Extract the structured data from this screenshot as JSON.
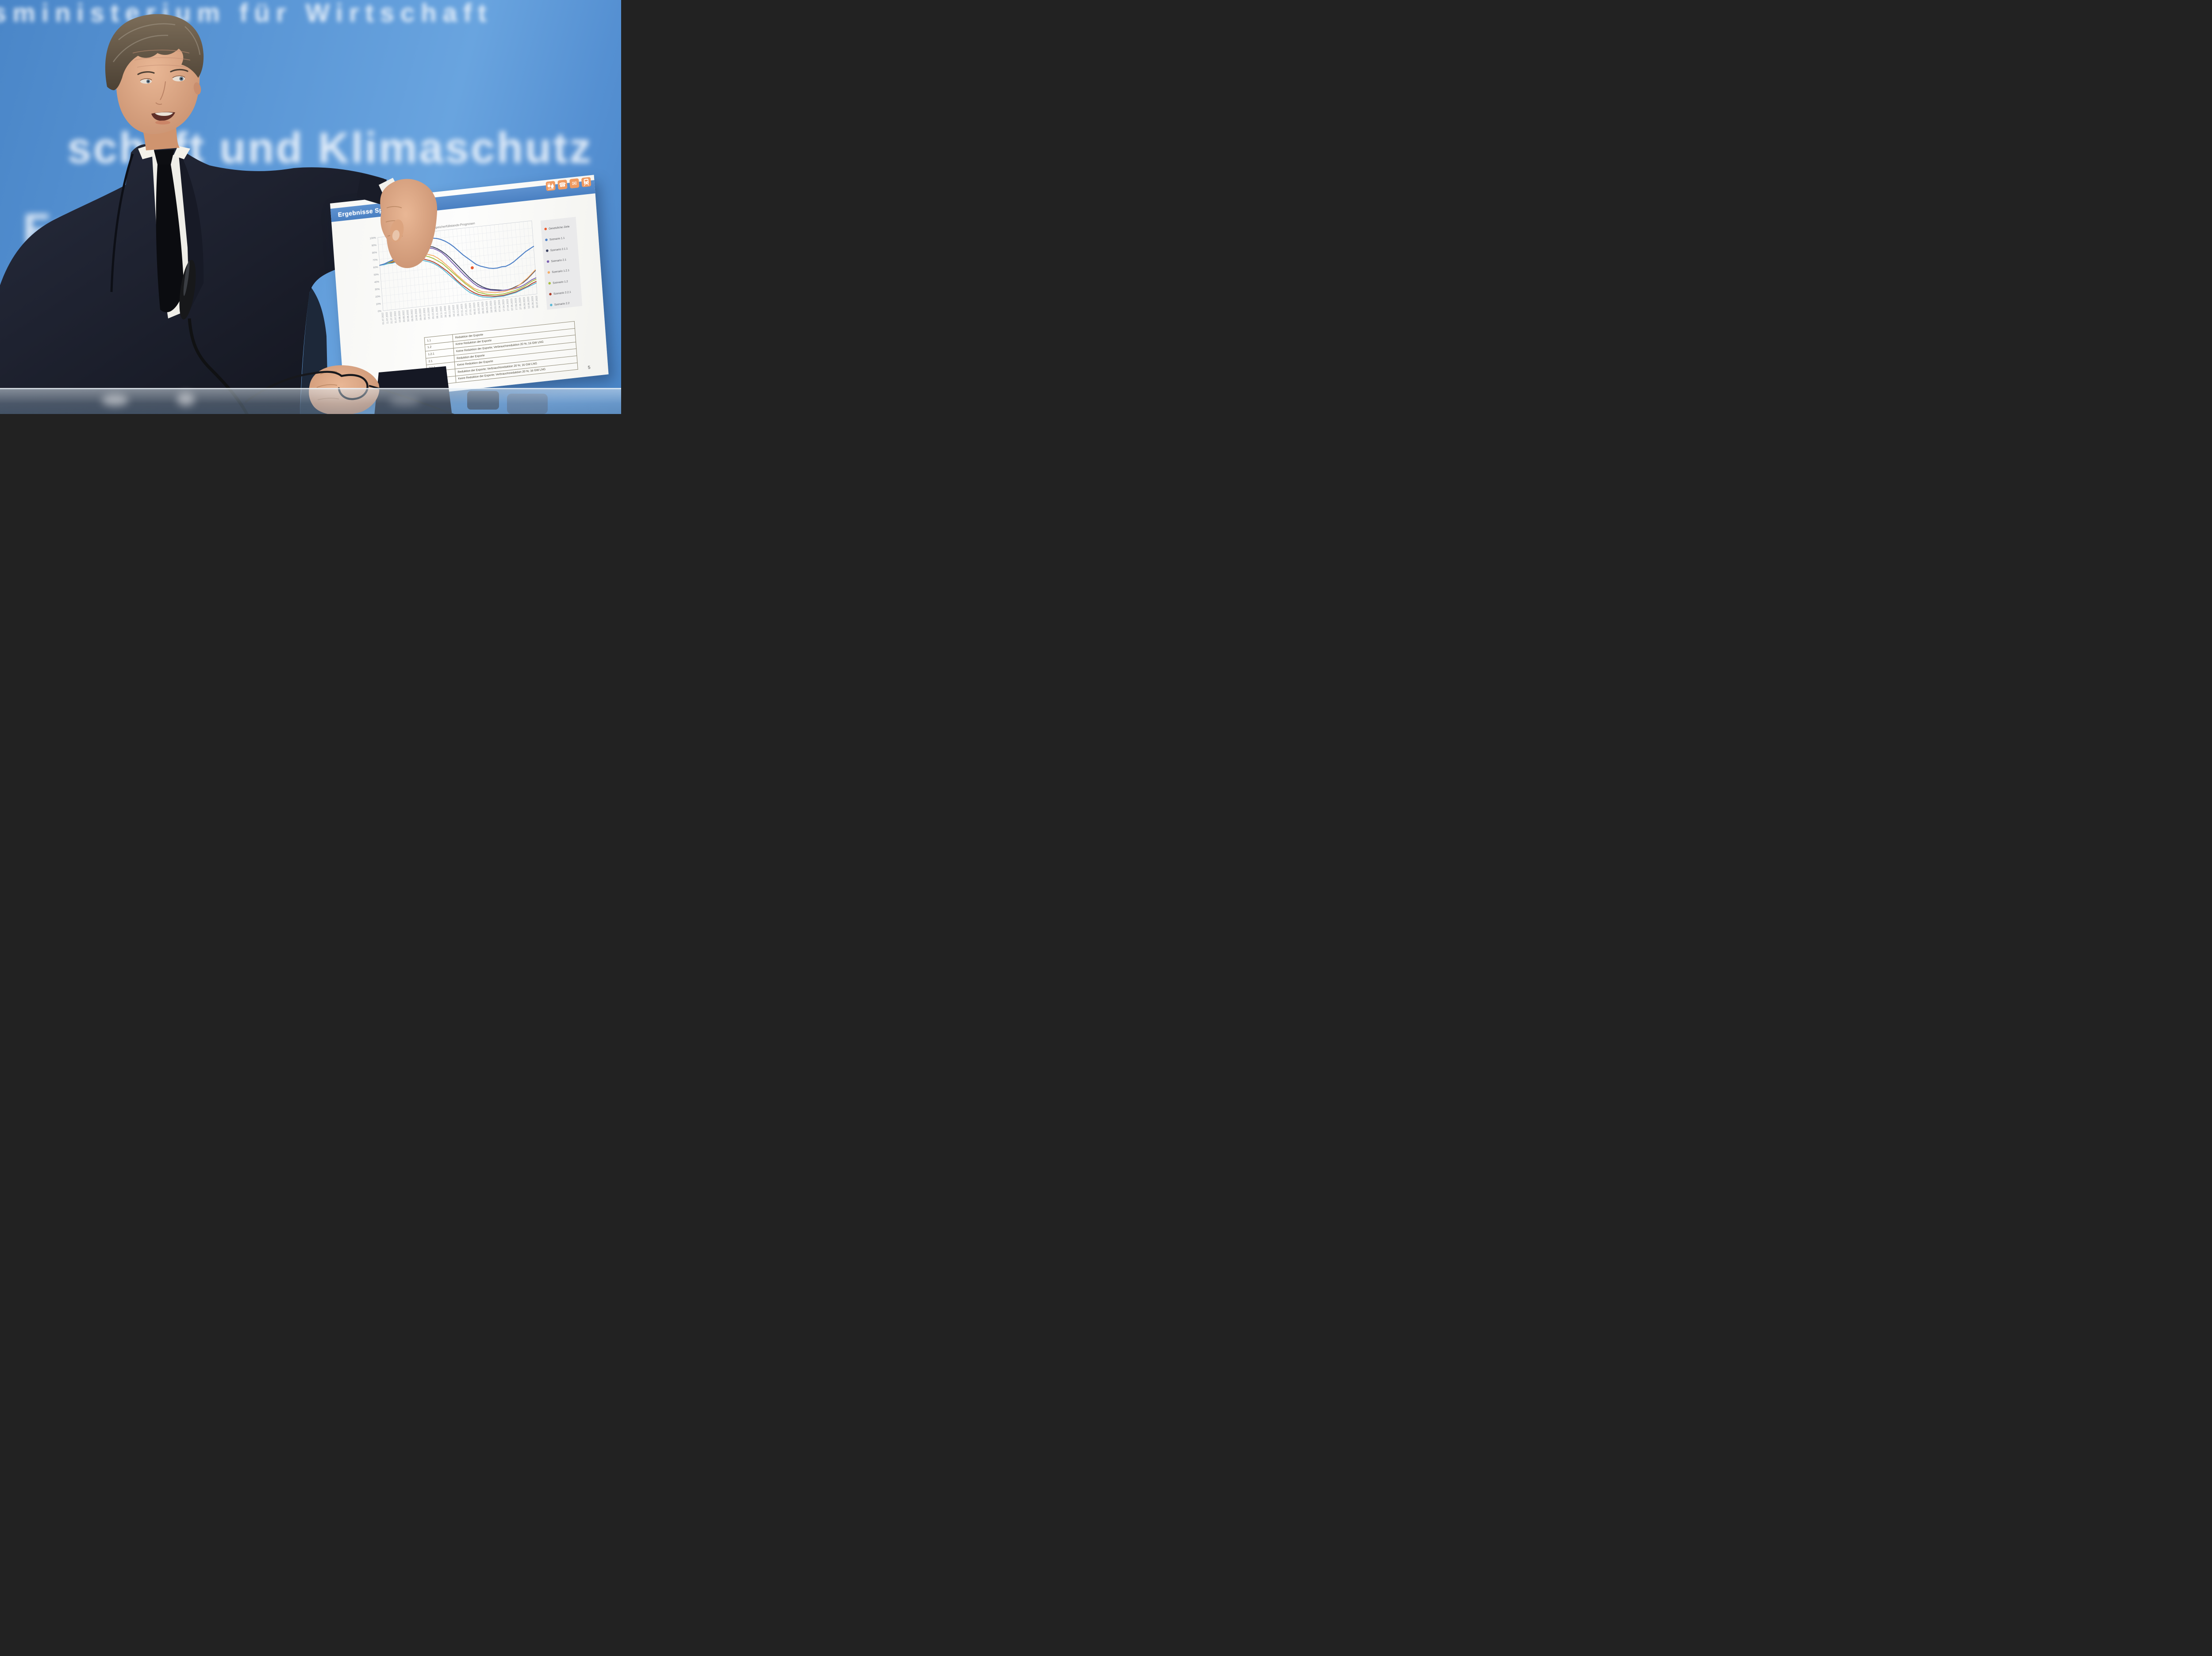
{
  "backdrop": {
    "wall_color": "#5b97d6",
    "rows": [
      {
        "text": "sministerium für Wirtschaft"
      },
      {
        "text": "schaft und Klimaschutz"
      },
      {
        "text": "Fe"
      },
      {
        "text": "cti"
      }
    ]
  },
  "slide": {
    "header": {
      "title": "Ergebnisse Speicherfüllstände",
      "bar_color": "#4a80c2",
      "icon_bg": "#f09a60",
      "icons": [
        {
          "name": "energy-plug-flame-icon",
          "glyph": ""
        },
        {
          "name": "phone-icon",
          "glyph": "☎"
        },
        {
          "name": "mail-icon",
          "glyph": "✉"
        },
        {
          "name": "train-icon",
          "glyph": ""
        }
      ]
    },
    "page_number": "5",
    "table": {
      "rows": [
        {
          "id": "1.1",
          "description": "Reduktion der Exporte"
        },
        {
          "id": "1.2",
          "description": "Keine Reduktion der Exporte"
        },
        {
          "id": "1.2.1",
          "description": "Keine Reduktion der Exporte; Verbrauchsreduktion 20 %; 16 GW LNG"
        },
        {
          "id": "2.1",
          "description": "Reduktion der Exporte"
        },
        {
          "id": "2.1.1",
          "description": "Keine Reduktion der Exporte"
        },
        {
          "id": "2.2",
          "description": "Reduktion der Exporte; Verbrauchsreduktion 20 %; 16 GW LNG"
        },
        {
          "id": "2.2.1",
          "description": "Keine Reduktion der Exporte; Verbrauchsreduktion 20 %; 16 GW LNG"
        }
      ]
    }
  },
  "chart_data": {
    "type": "line",
    "title": "Speicherfüllstands-Prognosen",
    "xlabel": "",
    "ylabel": "",
    "ylim": [
      0,
      100
    ],
    "y_ticks": [
      "0%",
      "10%",
      "20%",
      "30%",
      "40%",
      "50%",
      "60%",
      "70%",
      "80%",
      "90%",
      "100%"
    ],
    "grid": true,
    "legend_position": "right",
    "categories": [
      "01.07.2022",
      "11.07.2022",
      "21.07.2022",
      "31.07.2022",
      "10.08.2022",
      "20.08.2022",
      "30.08.2022",
      "09.09.2022",
      "19.09.2022",
      "29.09.2022",
      "09.10.2022",
      "19.10.2022",
      "29.10.2022",
      "08.11.2022",
      "18.11.2022",
      "28.11.2022",
      "08.12.2022",
      "18.12.2022",
      "28.12.2022",
      "07.01.2023",
      "17.01.2023",
      "27.01.2023",
      "06.02.2023",
      "16.02.2023",
      "26.02.2023",
      "08.03.2023",
      "18.03.2023",
      "28.03.2023",
      "07.04.2023",
      "17.04.2023",
      "27.04.2023",
      "07.05.2023",
      "17.05.2023",
      "27.05.2023",
      "06.06.2023",
      "16.06.2023",
      "26.06.2023",
      "06.07.2023"
    ],
    "series": [
      {
        "name": "Szenario 1.1",
        "color": "#4f81c7",
        "values": [
          62,
          63,
          65,
          67,
          70,
          74,
          78,
          81,
          85,
          84,
          88,
          91,
          90,
          91,
          90,
          88,
          85,
          81,
          76,
          70,
          64,
          59,
          54,
          49,
          46,
          44,
          42,
          41,
          41,
          42,
          42,
          44,
          47,
          51,
          55,
          59,
          62,
          65
        ]
      },
      {
        "name": "Szenario 2.1.1",
        "color": "#3a4160",
        "values": [
          62,
          63,
          64,
          66,
          68,
          70,
          72,
          74,
          76,
          78,
          79,
          80,
          80,
          79,
          76,
          72,
          67,
          61,
          54,
          47,
          40,
          33,
          27,
          22,
          18,
          15,
          13,
          12,
          11,
          10,
          10,
          11,
          13,
          15,
          18,
          22,
          27,
          32
        ]
      },
      {
        "name": "Szenario 2.1",
        "color": "#7a5fb0",
        "values": [
          62,
          63,
          64,
          66,
          68,
          69,
          71,
          73,
          74,
          76,
          77,
          78,
          78,
          77,
          74,
          70,
          64,
          57,
          50,
          43,
          36,
          30,
          24,
          19,
          16,
          14,
          12,
          11,
          10,
          10,
          10,
          10,
          11,
          12,
          14,
          17,
          20,
          22
        ]
      },
      {
        "name": "Szenario 1.2.1",
        "color": "#f5ad66",
        "values": [
          62,
          63,
          64,
          65,
          67,
          68,
          70,
          71,
          72,
          72,
          72,
          71,
          69,
          67,
          63,
          58,
          52,
          46,
          39,
          33,
          27,
          22,
          17,
          14,
          11,
          10,
          9,
          8,
          8,
          8,
          9,
          10,
          12,
          15,
          19,
          23,
          28,
          33
        ]
      },
      {
        "name": "Szenario 1.2",
        "color": "#a8c03f",
        "values": [
          62,
          63,
          64,
          65,
          66,
          67,
          68,
          69,
          70,
          70,
          69,
          68,
          66,
          63,
          59,
          55,
          49,
          43,
          37,
          31,
          25,
          20,
          15,
          11,
          9,
          7,
          6,
          5,
          5,
          5,
          6,
          7,
          8,
          10,
          12,
          15,
          18,
          20
        ]
      },
      {
        "name": "Szenario 2.2.1",
        "color": "#ad3e2a",
        "values": [
          62,
          63,
          63,
          64,
          65,
          66,
          66,
          67,
          67,
          66,
          65,
          63,
          61,
          58,
          54,
          49,
          44,
          38,
          31,
          25,
          20,
          15,
          11,
          8,
          6,
          5,
          4,
          3,
          3,
          3,
          4,
          5,
          6,
          8,
          10,
          12,
          15,
          17
        ]
      },
      {
        "name": "Szenario 2.2",
        "color": "#5cb8d6",
        "values": [
          62,
          62,
          63,
          63,
          64,
          65,
          65,
          66,
          65,
          64,
          63,
          61,
          59,
          56,
          52,
          47,
          41,
          35,
          29,
          23,
          17,
          12,
          9,
          6,
          4,
          3,
          2,
          2,
          2,
          2,
          3,
          4,
          5,
          7,
          9,
          11,
          13,
          15
        ]
      }
    ],
    "targets": {
      "name": "Gesetzliche Ziele",
      "color": "#eb5a2d",
      "points": [
        {
          "category": "09.10.2022",
          "value": 85
        },
        {
          "category": "08.11.2022",
          "value": 95
        },
        {
          "category": "06.02.2023",
          "value": 45
        }
      ]
    }
  }
}
